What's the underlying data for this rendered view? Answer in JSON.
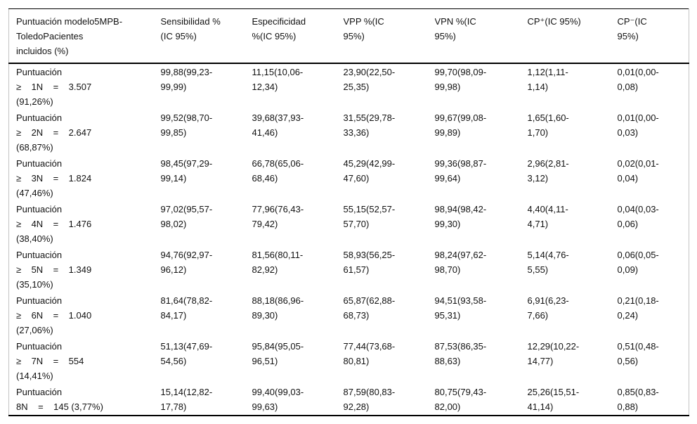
{
  "table": {
    "columns": [
      {
        "key": "puntuacion",
        "label": "Puntuación modelo5MPB-\nToledoPacientes\nincluidos (%)"
      },
      {
        "key": "sensibilidad",
        "label": "Sensibilidad %\n(IC 95%)"
      },
      {
        "key": "especificidad",
        "label": "Especificidad\n%(IC 95%)"
      },
      {
        "key": "vpp",
        "label": "VPP %(IC\n95%)"
      },
      {
        "key": "vpn",
        "label": "VPN %(IC\n95%)"
      },
      {
        "key": "cp-pos",
        "label": "CP⁺(IC 95%)"
      },
      {
        "key": "cp-neg",
        "label": "CP⁻(IC\n95%)"
      }
    ],
    "rows": [
      {
        "label": "Puntuación\n≥    1N    =    3.507\n(91,26%)",
        "values": [
          "99,88(99,23-\n99,99)",
          "11,15(10,06-\n12,34)",
          "23,90(22,50-\n25,35)",
          "99,70(98,09-\n99,98)",
          "1,12(1,11-\n1,14)",
          "0,01(0,00-\n0,08)"
        ]
      },
      {
        "label": "Puntuación\n≥    2N    =    2.647\n(68,87%)",
        "values": [
          "99,52(98,70-\n99,85)",
          "39,68(37,93-\n41,46)",
          "31,55(29,78-\n33,36)",
          "99,67(99,08-\n99,89)",
          "1,65(1,60-\n1,70)",
          "0,01(0,00-\n0,03)"
        ]
      },
      {
        "label": "Puntuación\n≥    3N    =    1.824\n(47,46%)",
        "values": [
          "98,45(97,29-\n99,14)",
          "66,78(65,06-\n68,46)",
          "45,29(42,99-\n47,60)",
          "99,36(98,87-\n99,64)",
          "2,96(2,81-\n3,12)",
          "0,02(0,01-\n0,04)"
        ]
      },
      {
        "label": "Puntuación\n≥    4N    =    1.476\n(38,40%)",
        "values": [
          "97,02(95,57-\n98,02)",
          "77,96(76,43-\n79,42)",
          "55,15(52,57-\n57,70)",
          "98,94(98,42-\n99,30)",
          "4,40(4,11-\n4,71)",
          "0,04(0,03-\n0,06)"
        ]
      },
      {
        "label": "Puntuación\n≥    5N    =    1.349\n(35,10%)",
        "values": [
          "94,76(92,97-\n96,12)",
          "81,56(80,11-\n82,92)",
          "58,93(56,25-\n61,57)",
          "98,24(97,62-\n98,70)",
          "5,14(4,76-\n5,55)",
          "0,06(0,05-\n0,09)"
        ]
      },
      {
        "label": "Puntuación\n≥    6N    =    1.040\n(27,06%)",
        "values": [
          "81,64(78,82-\n84,17)",
          "88,18(86,96-\n89,30)",
          "65,87(62,88-\n68,73)",
          "94,51(93,58-\n95,31)",
          "6,91(6,23-\n7,66)",
          "0,21(0,18-\n0,24)"
        ]
      },
      {
        "label": "Puntuación\n≥    7N    =    554\n(14,41%)",
        "values": [
          "51,13(47,69-\n54,56)",
          "95,84(95,05-\n96,51)",
          "77,44(73,68-\n80,81)",
          "87,53(86,35-\n88,63)",
          "12,29(10,22-\n14,77)",
          "0,51(0,48-\n0,56)"
        ]
      },
      {
        "label": "Puntuación\n8N    =    145 (3,77%)",
        "values": [
          "15,14(12,82-\n17,78)",
          "99,40(99,03-\n99,63)",
          "87,59(80,83-\n92,28)",
          "80,75(79,43-\n82,00)",
          "25,26(15,51-\n41,14)",
          "0,85(0,83-\n0,88)"
        ]
      }
    ]
  },
  "colors": {
    "text": "#111111",
    "rule_heavy": "#000000",
    "border_light": "#c4c4c4",
    "background": "#ffffff"
  }
}
